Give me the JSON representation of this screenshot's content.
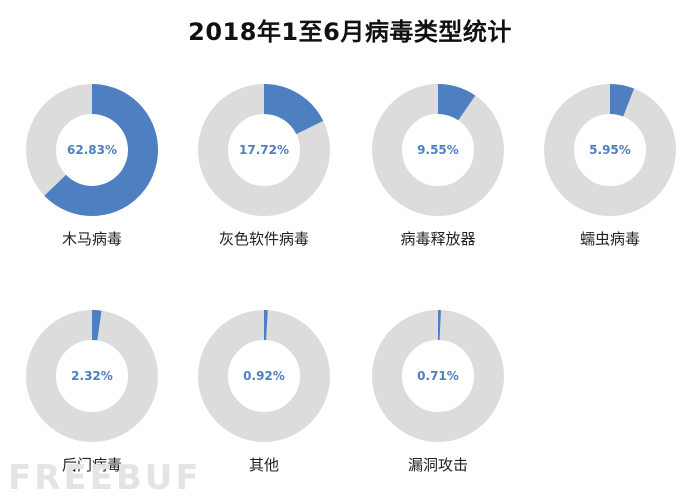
{
  "chart_data": {
    "type": "pie",
    "title": "2018年1至6月病毒类型统计",
    "charts": [
      {
        "label": "木马病毒",
        "value": 62.83,
        "value_label": "62.83%"
      },
      {
        "label": "灰色软件病毒",
        "value": 17.72,
        "value_label": "17.72%"
      },
      {
        "label": "病毒释放器",
        "value": 9.55,
        "value_label": "9.55%"
      },
      {
        "label": "蠕虫病毒",
        "value": 5.95,
        "value_label": "5.95%"
      },
      {
        "label": "后门病毒",
        "value": 2.32,
        "value_label": "2.32%"
      },
      {
        "label": "其他",
        "value": 0.92,
        "value_label": "0.92%"
      },
      {
        "label": "漏洞攻击",
        "value": 0.71,
        "value_label": "0.71%"
      }
    ],
    "grid": false,
    "legend": "none"
  },
  "colors": {
    "accent": "#4e7fc1",
    "track": "#dcdcdc",
    "value_text": "#4e7fc1"
  },
  "watermark": "FREEBUF"
}
